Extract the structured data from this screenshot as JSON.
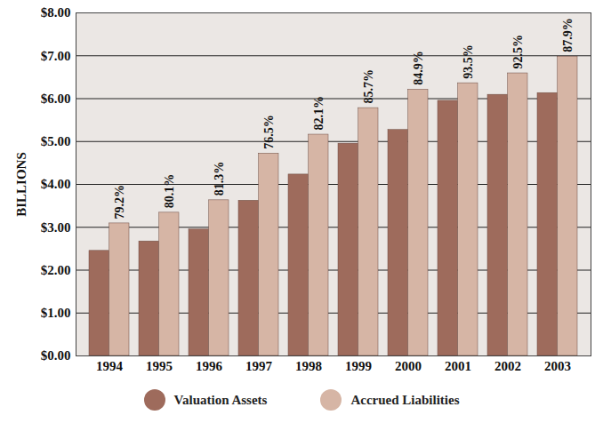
{
  "chart_data": {
    "type": "bar",
    "y_label": "BILLIONS",
    "categories": [
      "1994",
      "1995",
      "1996",
      "1997",
      "1998",
      "1999",
      "2000",
      "2001",
      "2002",
      "2003"
    ],
    "series": [
      {
        "name": "Valuation Assets",
        "color": "#9e6b5c",
        "values": [
          2.45,
          2.67,
          2.95,
          3.62,
          4.23,
          4.95,
          5.27,
          5.95,
          6.09,
          6.13
        ]
      },
      {
        "name": "Accrued Liabilities",
        "color": "#d6b5a5",
        "values": [
          3.09,
          3.34,
          3.63,
          4.72,
          5.16,
          5.78,
          6.21,
          6.36,
          6.59,
          6.98
        ],
        "annotations": [
          "79.2%",
          "80.1%",
          "81.3%",
          "76.5%",
          "82.1%",
          "85.7%",
          "84.9%",
          "93.5%",
          "92.5%",
          "87.9%"
        ]
      }
    ],
    "ylim": [
      0,
      8
    ],
    "yticks": [
      {
        "value": 0,
        "label": "$0.00"
      },
      {
        "value": 1,
        "label": "$1.00"
      },
      {
        "value": 2,
        "label": "$2.00"
      },
      {
        "value": 3,
        "label": "$3.00"
      },
      {
        "value": 4,
        "label": "$4.00"
      },
      {
        "value": 5,
        "label": "$5.00"
      },
      {
        "value": 6,
        "label": "$6.00"
      },
      {
        "value": 7,
        "label": "$7.00"
      },
      {
        "value": 8,
        "label": "$8.00"
      }
    ],
    "grid": true,
    "legend": "bottom"
  }
}
